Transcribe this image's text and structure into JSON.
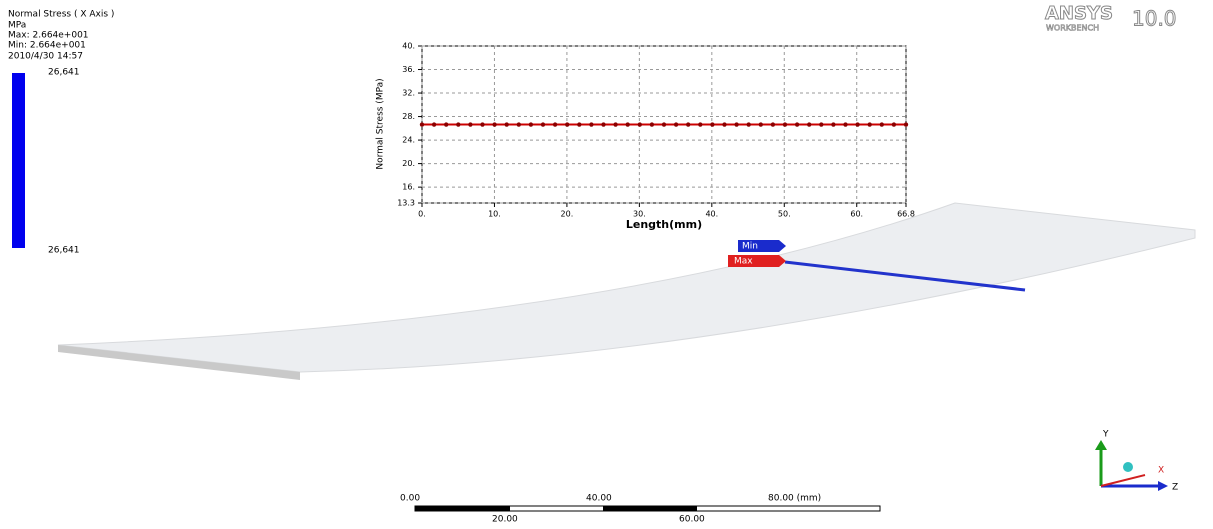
{
  "legend": {
    "title": "Normal Stress ( X Axis )",
    "unit": "MPa",
    "max": "Max: 2.664e+001",
    "min": "Min: 2.664e+001",
    "date": "2010/4/30 14:57",
    "top_label": "26,641",
    "bottom_label": "26,641"
  },
  "logo": {
    "brand": "ANSYS",
    "product": "WORKBENCH",
    "version": "10.0"
  },
  "chart_data": {
    "type": "line",
    "x_label": "Length(mm)",
    "y_label": "Normal Stress (MPa)",
    "x": [
      0,
      1.67,
      3.34,
      5.01,
      6.68,
      8.35,
      10.02,
      11.69,
      13.36,
      15.03,
      16.7,
      18.37,
      20.04,
      21.71,
      23.38,
      25.05,
      26.72,
      28.39,
      30.06,
      31.73,
      33.4,
      35.07,
      36.74,
      38.41,
      40.08,
      41.75,
      43.42,
      45.09,
      46.76,
      48.43,
      50.1,
      51.77,
      53.44,
      55.11,
      56.78,
      58.45,
      60.12,
      61.79,
      63.46,
      65.13,
      66.8
    ],
    "values": [
      26.641,
      26.641,
      26.641,
      26.641,
      26.641,
      26.641,
      26.641,
      26.641,
      26.641,
      26.641,
      26.641,
      26.641,
      26.641,
      26.641,
      26.641,
      26.641,
      26.641,
      26.641,
      26.641,
      26.641,
      26.641,
      26.641,
      26.641,
      26.641,
      26.641,
      26.641,
      26.641,
      26.641,
      26.641,
      26.641,
      26.641,
      26.641,
      26.641,
      26.641,
      26.641,
      26.641,
      26.641,
      26.641,
      26.641,
      26.641,
      26.641
    ],
    "color": "#cc0000",
    "marker_color": "#8b0000",
    "xlim": [
      0,
      66.8
    ],
    "ylim": [
      13.3,
      40
    ],
    "xticks": [
      {
        "value": 0,
        "label": "0."
      },
      {
        "value": 10,
        "label": "10."
      },
      {
        "value": 20,
        "label": "20."
      },
      {
        "value": 30,
        "label": "30."
      },
      {
        "value": 40,
        "label": "40."
      },
      {
        "value": 50,
        "label": "50."
      },
      {
        "value": 60,
        "label": "60."
      },
      66.8
    ],
    "yticks": [
      13.3,
      {
        "value": 16,
        "label": "16."
      },
      {
        "value": 20,
        "label": "20."
      },
      {
        "value": 24,
        "label": "24."
      },
      {
        "value": 28,
        "label": "28."
      },
      {
        "value": 32,
        "label": "32."
      },
      {
        "value": 36,
        "label": "36."
      },
      {
        "value": 40,
        "label": "40."
      }
    ],
    "grid": true
  },
  "probes": {
    "min": "Min",
    "max": "Max"
  },
  "scale_bar": {
    "top": [
      "0.00",
      "40.00",
      "80.00 (mm)"
    ],
    "bottom": [
      "20.00",
      "60.00"
    ]
  },
  "triad": {
    "y": "Y",
    "x": "X",
    "z": "Z"
  }
}
